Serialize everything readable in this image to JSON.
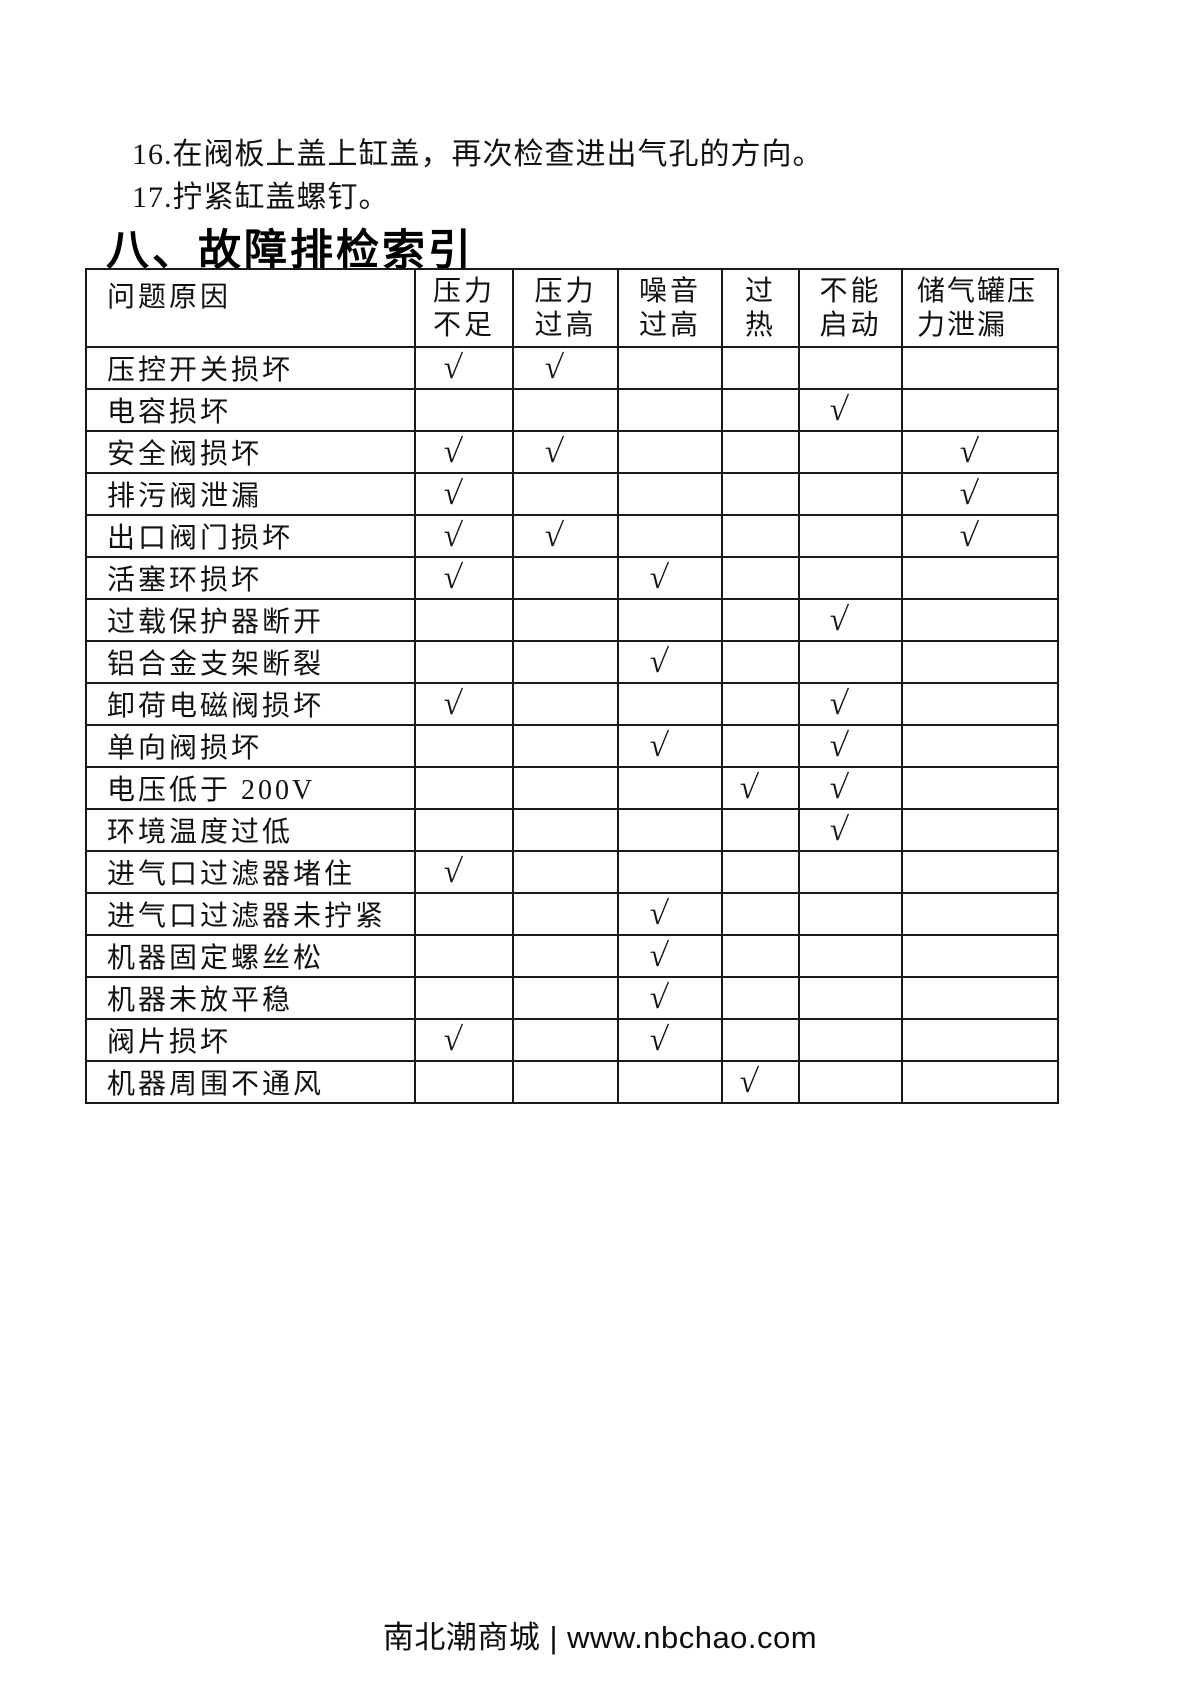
{
  "document": {
    "steps": [
      "16.在阀板上盖上缸盖，再次检查进出气孔的方向。",
      "17.拧紧缸盖螺钉。"
    ],
    "section_heading": "八、故障排检索引",
    "fault_table": {
      "corner_header": "问题原因",
      "symptom_columns": [
        {
          "line1": "压力",
          "line2": "不足"
        },
        {
          "line1": "压力",
          "line2": "过高"
        },
        {
          "line1": "噪音",
          "line2": "过高"
        },
        {
          "line1": "过",
          "line2": "热"
        },
        {
          "line1": "不能",
          "line2": "启动"
        },
        {
          "line1": "储气罐压",
          "line2": "力泄漏"
        }
      ],
      "check_mark": "√",
      "rows": [
        {
          "cause": "压控开关损坏",
          "cells": [
            "√",
            "√",
            "",
            "",
            "",
            ""
          ]
        },
        {
          "cause": "电容损坏",
          "cells": [
            "",
            "",
            "",
            "",
            "√",
            ""
          ]
        },
        {
          "cause": "安全阀损坏",
          "cells": [
            "√",
            "√",
            "",
            "",
            "",
            "√"
          ]
        },
        {
          "cause": "排污阀泄漏",
          "cells": [
            "√",
            "",
            "",
            "",
            "",
            "√"
          ]
        },
        {
          "cause": "出口阀门损坏",
          "cells": [
            "√",
            "√",
            "",
            "",
            "",
            "√"
          ]
        },
        {
          "cause": "活塞环损坏",
          "cells": [
            "√",
            "",
            "√",
            "",
            "",
            ""
          ]
        },
        {
          "cause": "过载保护器断开",
          "cells": [
            "",
            "",
            "",
            "",
            "√",
            ""
          ]
        },
        {
          "cause": "铝合金支架断裂",
          "cells": [
            "",
            "",
            "√",
            "",
            "",
            ""
          ]
        },
        {
          "cause": "卸荷电磁阀损坏",
          "cells": [
            "√",
            "",
            "",
            "",
            "√",
            ""
          ]
        },
        {
          "cause": "单向阀损坏",
          "cells": [
            "",
            "",
            "√",
            "",
            "√",
            ""
          ]
        },
        {
          "cause": "电压低于 200V",
          "cells": [
            "",
            "",
            "",
            "√",
            "√",
            ""
          ]
        },
        {
          "cause": "环境温度过低",
          "cells": [
            "",
            "",
            "",
            "",
            "√",
            ""
          ]
        },
        {
          "cause": "进气口过滤器堵住",
          "cells": [
            "√",
            "",
            "",
            "",
            "",
            ""
          ]
        },
        {
          "cause": "进气口过滤器未拧紧",
          "cells": [
            "",
            "",
            "√",
            "",
            "",
            ""
          ]
        },
        {
          "cause": "机器固定螺丝松",
          "cells": [
            "",
            "",
            "√",
            "",
            "",
            ""
          ]
        },
        {
          "cause": "机器未放平稳",
          "cells": [
            "",
            "",
            "√",
            "",
            "",
            ""
          ]
        },
        {
          "cause": "阀片损坏",
          "cells": [
            "√",
            "",
            "√",
            "",
            "",
            ""
          ]
        },
        {
          "cause": "机器周围不通风",
          "cells": [
            "",
            "",
            "",
            "√",
            "",
            ""
          ]
        }
      ]
    },
    "footer": "南北潮商城 | www.nbchao.com"
  }
}
